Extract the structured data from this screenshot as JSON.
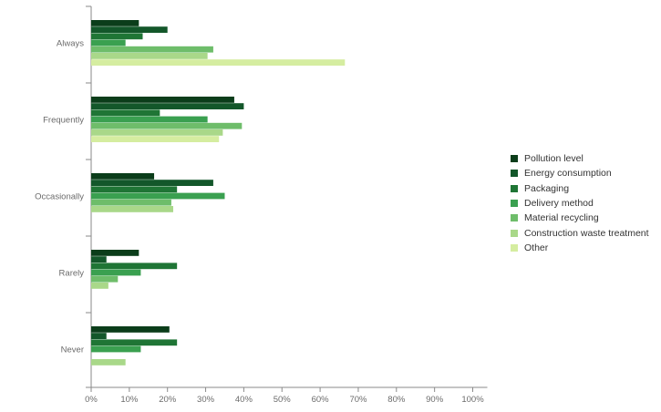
{
  "chart_data": {
    "type": "bar",
    "orientation": "horizontal",
    "categories": [
      "Always",
      "Frequently",
      "Occasionally",
      "Rarely",
      "Never"
    ],
    "series": [
      {
        "name": "Pollution level",
        "color": "#0b3d1a",
        "values": [
          12.5,
          37.5,
          16.5,
          12.5,
          20.5
        ]
      },
      {
        "name": "Energy consumption",
        "color": "#13572a",
        "values": [
          20,
          40,
          32,
          4,
          4
        ]
      },
      {
        "name": "Packaging",
        "color": "#1f7535",
        "values": [
          13.5,
          18,
          22.5,
          22.5,
          22.5
        ]
      },
      {
        "name": "Delivery method",
        "color": "#3aa050",
        "values": [
          9,
          30.5,
          35,
          13,
          13
        ]
      },
      {
        "name": "Material recycling",
        "color": "#6ebd6a",
        "values": [
          32,
          39.5,
          21,
          7,
          0
        ]
      },
      {
        "name": "Construction waste treatment",
        "color": "#a9d889",
        "values": [
          30.5,
          34.5,
          21.5,
          4.5,
          9
        ]
      },
      {
        "name": "Other",
        "color": "#d5eda0",
        "values": [
          66.5,
          33.5,
          0,
          0,
          0
        ]
      }
    ],
    "xlim": [
      0,
      100
    ],
    "xticks": [
      "0%",
      "10%",
      "20%",
      "30%",
      "40%",
      "50%",
      "60%",
      "70%",
      "80%",
      "90%",
      "100%"
    ],
    "title": "",
    "xlabel": "",
    "ylabel": "",
    "grid": false,
    "legend_position": "right"
  }
}
